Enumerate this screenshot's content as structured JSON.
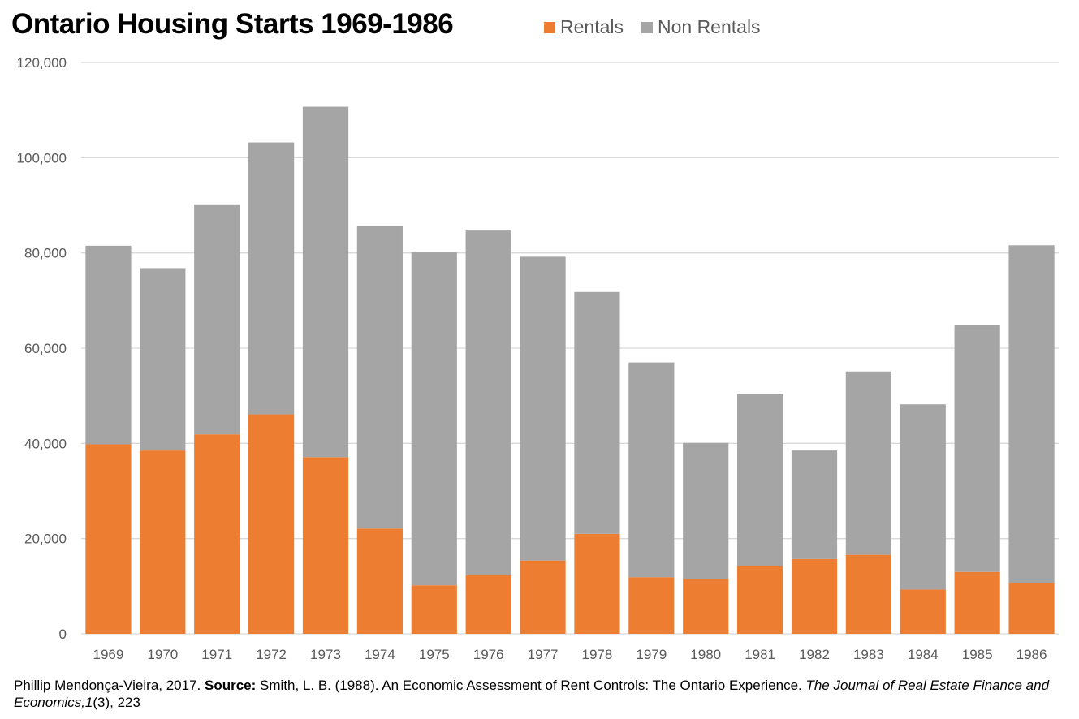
{
  "title": "Ontario Housing Starts 1969-1986",
  "colors": {
    "rentals": "#ED7D31",
    "non_rentals": "#A5A5A5",
    "grid": "#D9D9D9",
    "axis_text": "#595959"
  },
  "chart_data": {
    "type": "bar",
    "stacked": true,
    "title": "Ontario Housing Starts 1969-1986",
    "xlabel": "",
    "ylabel": "",
    "ylim": [
      0,
      120000
    ],
    "yticks": [
      0,
      20000,
      40000,
      60000,
      80000,
      100000,
      120000
    ],
    "ytick_labels": [
      "0",
      "20,000",
      "40,000",
      "60,000",
      "80,000",
      "100,000",
      "120,000"
    ],
    "grid": true,
    "legend_position": "top",
    "categories": [
      "1969",
      "1970",
      "1971",
      "1972",
      "1973",
      "1974",
      "1975",
      "1976",
      "1977",
      "1978",
      "1979",
      "1980",
      "1981",
      "1982",
      "1983",
      "1984",
      "1985",
      "1986"
    ],
    "series": [
      {
        "name": "Rentals",
        "color": "#ED7D31",
        "values": [
          39800,
          38500,
          41900,
          46100,
          37100,
          22100,
          10200,
          12300,
          15400,
          21000,
          11900,
          11500,
          14200,
          15700,
          16600,
          9300,
          13000,
          10700
        ]
      },
      {
        "name": "Non Rentals",
        "color": "#A5A5A5",
        "values": [
          41700,
          38300,
          48300,
          57100,
          73600,
          63500,
          69900,
          72400,
          63800,
          50800,
          45100,
          28600,
          36100,
          22800,
          38500,
          38900,
          51900,
          70900
        ]
      }
    ]
  },
  "footnote": {
    "author": "Phillip Mendonça-Vieira, 2017. ",
    "source_label": "Source:",
    "source_text": " Smith, L. B. (1988). An Economic Assessment of Rent Controls: The Ontario Experience. ",
    "journal": "The Journal of Real Estate Finance and Economics,",
    "volume": "1",
    "issue_pages": "(3), 223"
  }
}
